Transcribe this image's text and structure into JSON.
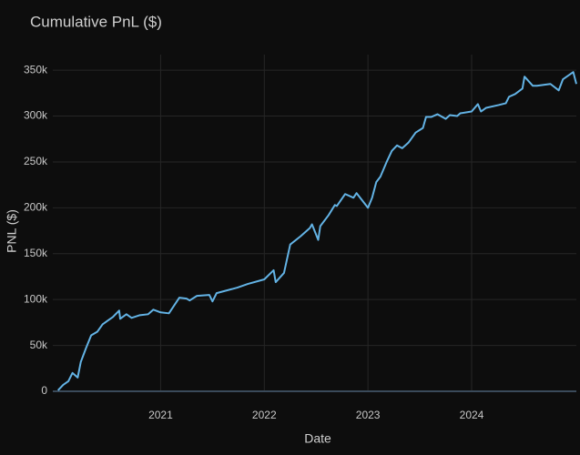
{
  "chart_data": {
    "type": "line",
    "title": "Cumulative PnL ($)",
    "x_label": "Date",
    "y_label": "PNL ($)",
    "x": [
      2020.01,
      2020.06,
      2020.11,
      2020.15,
      2020.2,
      2020.23,
      2020.28,
      2020.33,
      2020.39,
      2020.44,
      2020.49,
      2020.54,
      2020.6,
      2020.61,
      2020.67,
      2020.72,
      2020.8,
      2020.88,
      2020.93,
      2021.0,
      2021.08,
      2021.18,
      2021.25,
      2021.28,
      2021.35,
      2021.47,
      2021.5,
      2021.54,
      2021.74,
      2021.84,
      2022.0,
      2022.09,
      2022.11,
      2022.19,
      2022.25,
      2022.35,
      2022.44,
      2022.46,
      2022.52,
      2022.54,
      2022.62,
      2022.68,
      2022.7,
      2022.78,
      2022.86,
      2022.89,
      2023.0,
      2023.04,
      2023.08,
      2023.12,
      2023.18,
      2023.23,
      2023.28,
      2023.33,
      2023.39,
      2023.46,
      2023.53,
      2023.56,
      2023.61,
      2023.67,
      2023.75,
      2023.79,
      2023.86,
      2023.89,
      2024.0,
      2024.06,
      2024.09,
      2024.14,
      2024.26,
      2024.33,
      2024.36,
      2024.42,
      2024.49,
      2024.51,
      2024.59,
      2024.63,
      2024.76,
      2024.84,
      2024.88,
      2024.98,
      2025.01
    ],
    "series": [
      {
        "name": "Cumulative PnL",
        "color": "#63b3e5",
        "values": [
          1000,
          7000,
          11000,
          20000,
          15000,
          32000,
          47000,
          61000,
          65000,
          73000,
          77000,
          81000,
          88000,
          79000,
          84000,
          80000,
          83000,
          84000,
          89000,
          86000,
          85000,
          102000,
          101000,
          99000,
          104000,
          105000,
          98000,
          107000,
          113000,
          117000,
          122000,
          132000,
          119000,
          129000,
          160000,
          169000,
          178000,
          182000,
          165000,
          180000,
          192000,
          203000,
          202000,
          215000,
          211000,
          216000,
          200000,
          211000,
          228000,
          234000,
          250000,
          262000,
          268000,
          265000,
          271000,
          282000,
          287000,
          299000,
          299000,
          302000,
          297000,
          301000,
          300000,
          303000,
          305000,
          313000,
          305000,
          309000,
          312000,
          314000,
          321000,
          324000,
          330000,
          343000,
          333000,
          333000,
          335000,
          328000,
          340000,
          348000,
          335000
        ]
      }
    ],
    "xlim": [
      2019.96,
      2025.01
    ],
    "xticks": [
      2021,
      2022,
      2023,
      2024
    ],
    "ylim": [
      0,
      367000
    ],
    "yticks": [
      0,
      {
        "value": 50000,
        "label": "50k"
      },
      {
        "value": 100000,
        "label": "100k"
      },
      {
        "value": 150000,
        "label": "150k"
      },
      {
        "value": 200000,
        "label": "200k"
      },
      {
        "value": 250000,
        "label": "250k"
      },
      {
        "value": 300000,
        "label": "300k"
      },
      {
        "value": 350000,
        "label": "350k"
      }
    ],
    "grid": true
  }
}
